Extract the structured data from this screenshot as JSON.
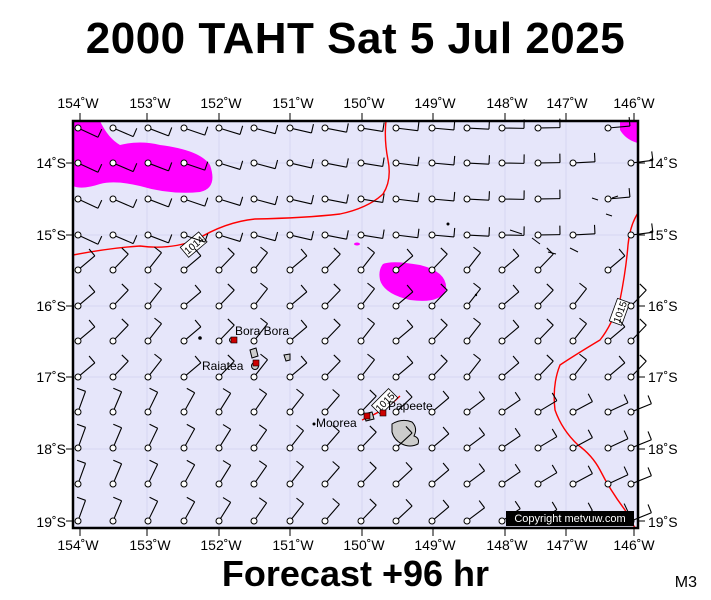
{
  "title": "2000 TAHT Sat 5 Jul 2025",
  "forecast": "Forecast +96 hr",
  "model": "M3",
  "copyright": "Copyright metvuw.com",
  "lon_labels": [
    "154˚W",
    "153˚W",
    "152˚W",
    "151˚W",
    "150˚W",
    "149˚W",
    "148˚W",
    "147˚W",
    "146˚W"
  ],
  "lat_labels": [
    "14˚S",
    "15˚S",
    "16˚S",
    "17˚S",
    "18˚S",
    "19˚S"
  ],
  "places": {
    "bora_bora": "Bora Bora",
    "raiatea": "Raiatea",
    "moorea": "Moorea",
    "papeete": "Papeete"
  },
  "isobars": {
    "west": "1014",
    "east": "1015",
    "south": "1015"
  },
  "colors": {
    "sea": "#e6e6fa",
    "rain": "#ff00ff",
    "isobar": "#ff0000",
    "land": "#cccccc"
  }
}
